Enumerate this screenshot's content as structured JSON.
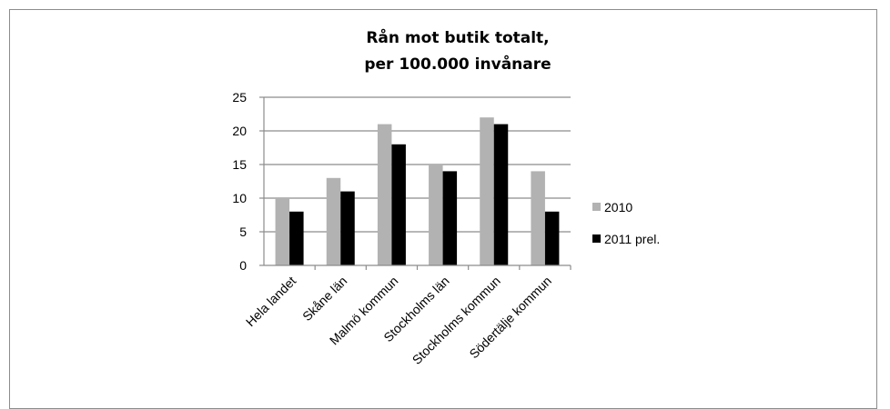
{
  "chart_data": {
    "type": "bar",
    "title_lines": [
      "Rån mot butik totalt,",
      "per 100.000 invånare"
    ],
    "categories": [
      "Hela landet",
      "Skåne län",
      "Malmö kommun",
      "Stockholms län",
      "Stockholms kommun",
      "Södertälje kommun"
    ],
    "series": [
      {
        "name": "2010",
        "values": [
          10,
          13,
          21,
          15,
          22,
          14
        ],
        "color": "#b2b2b2"
      },
      {
        "name": "2011 prel.",
        "values": [
          8,
          11,
          18,
          14,
          21,
          8
        ],
        "color": "#000000"
      }
    ],
    "ylim": [
      0,
      25
    ],
    "yticks": [
      0,
      5,
      10,
      15,
      20,
      25
    ],
    "grid": true,
    "legend": "right"
  },
  "colors": {
    "grid": "#8c8c8c",
    "axis": "#8c8c8c",
    "frame": "#8c8c8c"
  }
}
